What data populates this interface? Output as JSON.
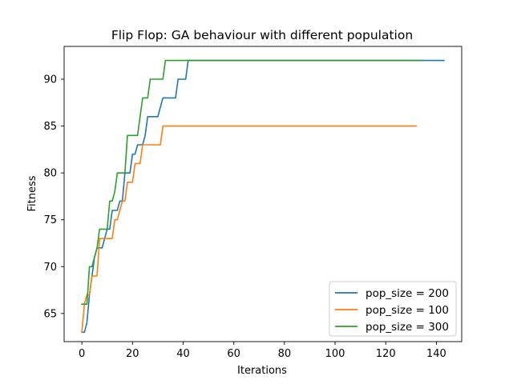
{
  "chart_data": {
    "type": "line",
    "title": "Flip Flop: GA behaviour with different population",
    "xlabel": "Iterations",
    "ylabel": "Fitness",
    "xlim": [
      -7,
      150
    ],
    "ylim": [
      62,
      93.5
    ],
    "xticks": [
      0,
      20,
      40,
      60,
      80,
      100,
      120,
      140
    ],
    "yticks": [
      65,
      70,
      75,
      80,
      85,
      90
    ],
    "grid": false,
    "legend_position": "lower-right",
    "series": [
      {
        "name": "pop_size = 200",
        "color": "#1f77b4",
        "x": [
          0,
          1,
          2,
          3,
          4,
          5,
          6,
          7,
          8,
          9,
          10,
          11,
          12,
          13,
          14,
          15,
          16,
          17,
          18,
          19,
          20,
          21,
          22,
          23,
          24,
          25,
          26,
          27,
          28,
          29,
          30,
          31,
          32,
          33,
          34,
          35,
          36,
          37,
          38,
          39,
          40,
          41,
          42,
          43,
          143
        ],
        "y": [
          63,
          63,
          64,
          67,
          69,
          71,
          72,
          72,
          72,
          73,
          74,
          74,
          76,
          76,
          76,
          77,
          77,
          80,
          80,
          80,
          82,
          82,
          83,
          83,
          83,
          84,
          86,
          86,
          86,
          86,
          86,
          87,
          88,
          88,
          88,
          88,
          88,
          88,
          90,
          90,
          90,
          90,
          92,
          92,
          92
        ]
      },
      {
        "name": "pop_size = 100",
        "color": "#ff7f0e",
        "x": [
          0,
          1,
          2,
          3,
          4,
          5,
          6,
          7,
          8,
          9,
          10,
          11,
          12,
          13,
          14,
          15,
          16,
          17,
          18,
          19,
          20,
          21,
          22,
          23,
          24,
          25,
          26,
          27,
          28,
          29,
          30,
          31,
          32,
          33,
          132
        ],
        "y": [
          63,
          66,
          67,
          67,
          69,
          69,
          69,
          73,
          73,
          73,
          73,
          73,
          73,
          75,
          75,
          76,
          77,
          77,
          79,
          79,
          79,
          81,
          81,
          81,
          83,
          83,
          83,
          83,
          83,
          83,
          83,
          83,
          85,
          85,
          85
        ]
      },
      {
        "name": "pop_size = 300",
        "color": "#2ca02c",
        "x": [
          0,
          1,
          2,
          3,
          4,
          5,
          6,
          7,
          8,
          9,
          10,
          11,
          12,
          13,
          14,
          15,
          16,
          17,
          18,
          19,
          20,
          21,
          22,
          23,
          24,
          25,
          26,
          27,
          28,
          29,
          30,
          31,
          32,
          33,
          34,
          35,
          134
        ],
        "y": [
          66,
          66,
          66,
          70,
          70,
          71,
          72,
          74,
          74,
          74,
          74,
          77,
          77,
          78,
          80,
          80,
          80,
          80,
          84,
          84,
          84,
          84,
          84,
          86,
          88,
          88,
          88,
          90,
          90,
          90,
          90,
          90,
          90,
          92,
          92,
          92,
          92
        ]
      }
    ]
  }
}
